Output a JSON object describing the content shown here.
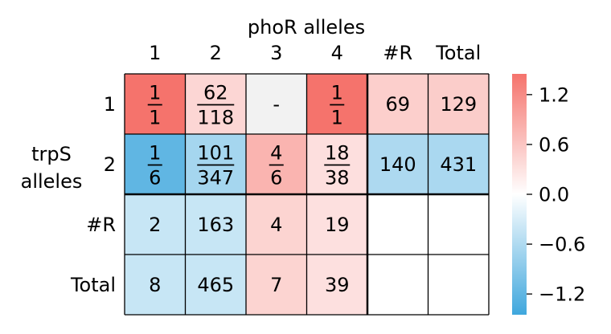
{
  "chart_data": {
    "type": "heatmap",
    "title": "",
    "xlabel": "phoR alleles",
    "ylabel": "trpS\nalleles",
    "x_tick_labels": [
      "1",
      "2",
      "3",
      "4",
      "#R",
      "Total"
    ],
    "y_tick_labels": [
      "1",
      "2",
      "#R",
      "Total"
    ],
    "cells": [
      [
        {
          "label": "1/1",
          "num": "1",
          "den": "1",
          "value": 1.45
        },
        {
          "label": "62/118",
          "num": "62",
          "den": "118",
          "value": 0.42
        },
        {
          "label": "-",
          "value": 0.03,
          "na": true
        },
        {
          "label": "1/1",
          "num": "1",
          "den": "1",
          "value": 1.45
        },
        {
          "label": "69",
          "value": 0.5
        },
        {
          "label": "129",
          "value": 0.52
        }
      ],
      [
        {
          "label": "1/6",
          "num": "1",
          "den": "6",
          "value": -1.2
        },
        {
          "label": "101/347",
          "num": "101",
          "den": "347",
          "value": -0.68
        },
        {
          "label": "4/6",
          "num": "4",
          "den": "6",
          "value": 0.78
        },
        {
          "label": "18/38",
          "num": "18",
          "den": "38",
          "value": 0.33
        },
        {
          "label": "140",
          "value": -0.62
        },
        {
          "label": "431",
          "value": -0.64
        }
      ],
      [
        {
          "label": "2",
          "value": -0.42
        },
        {
          "label": "163",
          "value": -0.42
        },
        {
          "label": "4",
          "value": 0.45
        },
        {
          "label": "19",
          "value": 0.32
        },
        {
          "label": "",
          "value": null
        },
        {
          "label": "",
          "value": null
        }
      ],
      [
        {
          "label": "8",
          "value": -0.42
        },
        {
          "label": "465",
          "value": -0.42
        },
        {
          "label": "7",
          "value": 0.45
        },
        {
          "label": "39",
          "value": 0.32
        },
        {
          "label": "",
          "value": null
        },
        {
          "label": "",
          "value": null
        }
      ]
    ],
    "colorbar": {
      "ticks": [
        "1.2",
        "0.6",
        "0.0",
        "−0.6",
        "−1.2"
      ],
      "tick_values": [
        1.2,
        0.6,
        0.0,
        -0.6,
        -1.2
      ],
      "vmin": -1.45,
      "vmax": 1.45,
      "low_color": "#3fa7dd",
      "mid_color": "#ffffff",
      "high_color": "#f5736c"
    },
    "grid": true,
    "legend": "colorbar right"
  }
}
